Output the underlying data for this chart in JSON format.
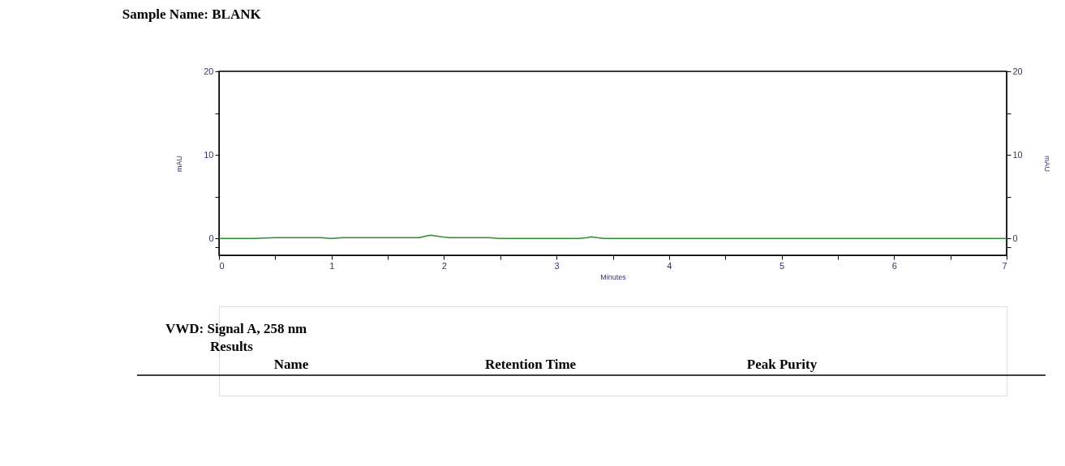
{
  "chart_data": {
    "type": "line",
    "title": "Sample Name: BLANK",
    "xlabel": "Minutes",
    "ylabel": "mAU",
    "y2label": "mAU",
    "x": [
      0,
      0.3,
      0.5,
      0.55,
      0.7,
      0.9,
      1.0,
      1.1,
      1.3,
      1.5,
      1.7,
      1.78,
      1.84,
      1.88,
      1.93,
      1.98,
      2.05,
      2.2,
      2.4,
      2.5,
      2.7,
      2.9,
      3.1,
      3.2,
      3.27,
      3.31,
      3.36,
      3.42,
      3.5,
      3.8,
      4.2,
      5.0,
      6.0,
      7.0
    ],
    "series": [
      {
        "color": "#2e8b2e",
        "values": [
          0,
          0,
          0.1,
          0.1,
          0.1,
          0.1,
          0,
          0.1,
          0.1,
          0.1,
          0.1,
          0.1,
          0.3,
          0.4,
          0.3,
          0.2,
          0.1,
          0.1,
          0.1,
          0,
          0,
          0,
          0,
          0,
          0.1,
          0.2,
          0.1,
          0,
          0,
          0,
          0,
          0,
          0,
          0
        ]
      }
    ],
    "xlim": [
      0,
      7
    ],
    "xticks": [
      0,
      {
        "value": 0.5,
        "label": null
      },
      1,
      {
        "value": 1.5,
        "label": null
      },
      2,
      {
        "value": 2.5,
        "label": null
      },
      3,
      {
        "value": 3.5,
        "label": null
      },
      4,
      {
        "value": 4.5,
        "label": null
      },
      5,
      {
        "value": 5.5,
        "label": null
      },
      6,
      {
        "value": 6.5,
        "label": null
      },
      7
    ],
    "ylim": [
      -2,
      20
    ],
    "yticks": [
      {
        "value": -1,
        "label": null
      },
      0,
      {
        "value": 5,
        "label": null
      },
      10,
      {
        "value": 15,
        "label": null
      },
      20
    ],
    "y2lim": [
      -2,
      20
    ],
    "y2ticks": [
      {
        "value": -1,
        "label": null
      },
      0,
      {
        "value": 5,
        "label": null
      },
      10,
      {
        "value": 15,
        "label": null
      },
      20
    ],
    "grid": false,
    "legend": false,
    "annotations": [
      "VWD: Signal A, 258 nm",
      "Results",
      "Name",
      "Retention Time",
      "Peak Purity"
    ]
  }
}
